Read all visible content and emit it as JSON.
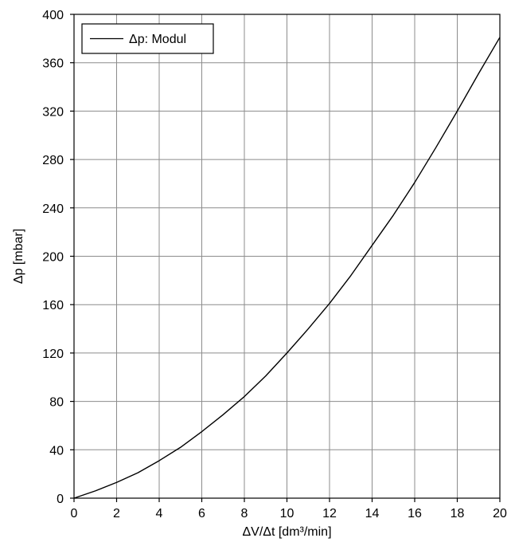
{
  "chart_data": {
    "type": "line",
    "xlabel": "ΔV/Δt [dm³/min]",
    "ylabel": "Δp [mbar]",
    "xlim": [
      0,
      20
    ],
    "ylim": [
      0,
      400
    ],
    "xticks": [
      "0",
      "2",
      "4",
      "6",
      "8",
      "10",
      "12",
      "14",
      "16",
      "18",
      "20"
    ],
    "yticks": [
      "0",
      "40",
      "80",
      "120",
      "160",
      "200",
      "240",
      "280",
      "320",
      "360",
      "400"
    ],
    "grid": true,
    "legend_position": "top-left",
    "series": [
      {
        "name": "Δp: Modul",
        "color": "#000000",
        "x": [
          0,
          1,
          2,
          3,
          4,
          5,
          6,
          7,
          8,
          9,
          10,
          11,
          12,
          13,
          14,
          15,
          16,
          17,
          18,
          19,
          20
        ],
        "y": [
          0,
          6,
          13,
          21,
          31,
          42,
          55,
          69,
          84,
          101,
          120,
          140,
          161,
          184,
          209,
          234,
          261,
          290,
          320,
          351,
          381
        ]
      }
    ]
  }
}
